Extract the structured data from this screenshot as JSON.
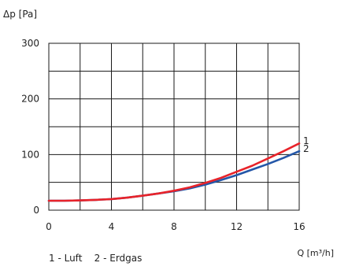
{
  "chart_data": {
    "type": "line",
    "ylabel": "Δp [Pa]",
    "xlabel": "Q [m³/h]",
    "xlim": [
      0,
      16
    ],
    "ylim": [
      0,
      300
    ],
    "x_ticks": [
      0,
      4,
      8,
      12,
      16
    ],
    "y_ticks": [
      0,
      100,
      200,
      300
    ],
    "grid": true,
    "legend_text": "1 - Luft    2 - Erdgas",
    "series": [
      {
        "name": "1",
        "color": "#e8232a",
        "x": [
          0,
          1,
          2,
          3,
          4,
          5,
          6,
          7,
          8,
          9,
          10,
          11,
          12,
          13,
          14,
          15,
          16
        ],
        "y": [
          17,
          17,
          17.5,
          18.5,
          20,
          22.5,
          26,
          30,
          35,
          41,
          49,
          58,
          69,
          80,
          93,
          106,
          120
        ]
      },
      {
        "name": "2",
        "color": "#2457a8",
        "x": [
          0,
          1,
          2,
          3,
          4,
          5,
          6,
          7,
          8,
          9,
          10,
          11,
          12,
          13,
          14,
          15,
          16
        ],
        "y": [
          17,
          17,
          17.5,
          18.5,
          20,
          22.5,
          26,
          30,
          34,
          39,
          46,
          54,
          63,
          73,
          83,
          94,
          106
        ]
      }
    ]
  }
}
